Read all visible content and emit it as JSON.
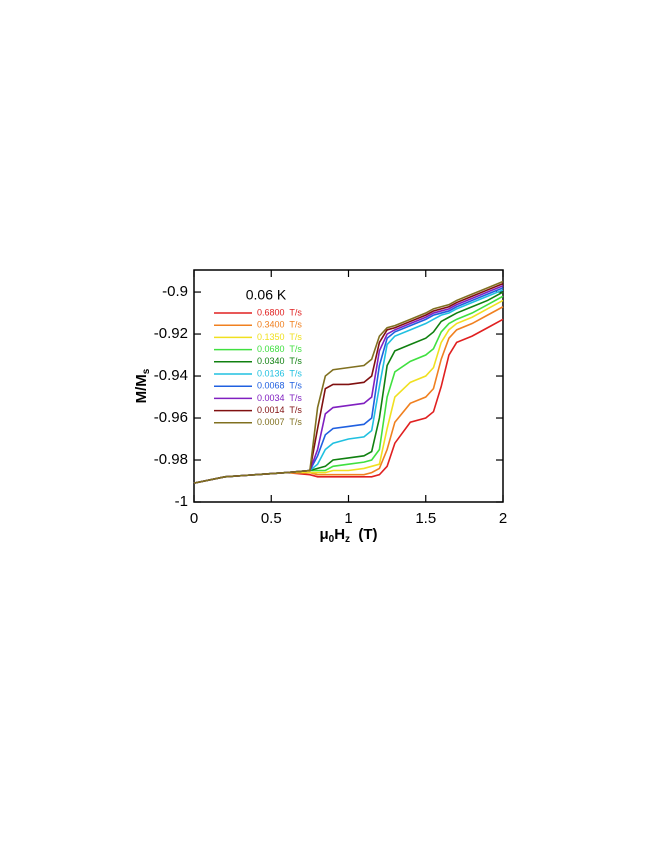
{
  "chart_data": {
    "type": "line",
    "title": "0.06  K",
    "xlabel": [
      {
        "text": "μ",
        "sub": false
      },
      {
        "text": "0",
        "sub": true
      },
      {
        "text": "H",
        "sub": false
      },
      {
        "text": "z",
        "sub": true
      },
      {
        "text": "  (T)",
        "sub": false
      }
    ],
    "ylabel": [
      {
        "text": "M/M",
        "sub": false
      },
      {
        "text": "s",
        "sub": true
      }
    ],
    "xlim": [
      0,
      2
    ],
    "ylim": [
      -1,
      -0.8895
    ],
    "xticks": [
      0,
      0.5,
      1,
      1.5,
      2
    ],
    "yticks": [
      -1,
      -0.98,
      -0.96,
      -0.94,
      -0.92,
      -0.9
    ],
    "x": [
      0,
      0.2,
      0.4,
      0.6,
      0.75,
      0.8,
      0.85,
      0.9,
      1.0,
      1.1,
      1.15,
      1.2,
      1.25,
      1.3,
      1.4,
      1.5,
      1.55,
      1.6,
      1.65,
      1.7,
      1.8,
      1.9,
      2.0
    ],
    "series": [
      {
        "name": "0.6800  T/s",
        "color": "#e02020",
        "values": [
          -0.991,
          -0.988,
          -0.987,
          -0.986,
          -0.987,
          -0.988,
          -0.988,
          -0.988,
          -0.988,
          -0.988,
          -0.988,
          -0.987,
          -0.983,
          -0.972,
          -0.962,
          -0.96,
          -0.957,
          -0.945,
          -0.93,
          -0.924,
          -0.921,
          -0.917,
          -0.913
        ]
      },
      {
        "name": "0.3400  T/s",
        "color": "#f08020",
        "values": [
          -0.991,
          -0.988,
          -0.987,
          -0.986,
          -0.986,
          -0.987,
          -0.987,
          -0.987,
          -0.987,
          -0.987,
          -0.986,
          -0.984,
          -0.975,
          -0.962,
          -0.953,
          -0.95,
          -0.946,
          -0.932,
          -0.922,
          -0.918,
          -0.915,
          -0.911,
          -0.907
        ]
      },
      {
        "name": "0.1350  T/s",
        "color": "#f0e020",
        "values": [
          -0.991,
          -0.988,
          -0.987,
          -0.986,
          -0.986,
          -0.986,
          -0.986,
          -0.985,
          -0.985,
          -0.984,
          -0.983,
          -0.982,
          -0.965,
          -0.95,
          -0.943,
          -0.94,
          -0.936,
          -0.924,
          -0.918,
          -0.915,
          -0.912,
          -0.908,
          -0.904
        ]
      },
      {
        "name": "0.0680  T/s",
        "color": "#40e040",
        "values": [
          -0.991,
          -0.988,
          -0.987,
          -0.986,
          -0.985,
          -0.985,
          -0.985,
          -0.983,
          -0.982,
          -0.981,
          -0.98,
          -0.975,
          -0.95,
          -0.938,
          -0.933,
          -0.93,
          -0.927,
          -0.919,
          -0.915,
          -0.913,
          -0.91,
          -0.906,
          -0.902
        ]
      },
      {
        "name": "0.0340  T/s",
        "color": "#108010",
        "values": [
          -0.991,
          -0.988,
          -0.987,
          -0.986,
          -0.985,
          -0.984,
          -0.983,
          -0.98,
          -0.979,
          -0.978,
          -0.976,
          -0.96,
          -0.935,
          -0.928,
          -0.925,
          -0.922,
          -0.919,
          -0.914,
          -0.912,
          -0.91,
          -0.907,
          -0.904,
          -0.9
        ]
      },
      {
        "name": "0.0136  T/s",
        "color": "#20c0e0",
        "values": [
          -0.991,
          -0.988,
          -0.987,
          -0.986,
          -0.985,
          -0.982,
          -0.975,
          -0.972,
          -0.97,
          -0.969,
          -0.966,
          -0.945,
          -0.925,
          -0.921,
          -0.918,
          -0.915,
          -0.913,
          -0.911,
          -0.91,
          -0.908,
          -0.905,
          -0.902,
          -0.899
        ]
      },
      {
        "name": "0.0068  T/s",
        "color": "#2060e0",
        "values": [
          -0.991,
          -0.988,
          -0.987,
          -0.986,
          -0.985,
          -0.978,
          -0.968,
          -0.965,
          -0.964,
          -0.963,
          -0.96,
          -0.935,
          -0.922,
          -0.919,
          -0.916,
          -0.913,
          -0.911,
          -0.91,
          -0.909,
          -0.907,
          -0.904,
          -0.901,
          -0.898
        ]
      },
      {
        "name": "0.0034  T/s",
        "color": "#8020c0",
        "values": [
          -0.991,
          -0.988,
          -0.987,
          -0.986,
          -0.985,
          -0.975,
          -0.958,
          -0.955,
          -0.954,
          -0.953,
          -0.95,
          -0.928,
          -0.92,
          -0.918,
          -0.915,
          -0.912,
          -0.91,
          -0.909,
          -0.908,
          -0.906,
          -0.903,
          -0.9,
          -0.897
        ]
      },
      {
        "name": "0.0014  T/s",
        "color": "#801010",
        "values": [
          -0.991,
          -0.988,
          -0.987,
          -0.986,
          -0.985,
          -0.965,
          -0.946,
          -0.944,
          -0.944,
          -0.943,
          -0.94,
          -0.924,
          -0.918,
          -0.917,
          -0.914,
          -0.911,
          -0.909,
          -0.908,
          -0.907,
          -0.905,
          -0.902,
          -0.899,
          -0.896
        ]
      },
      {
        "name": "0.0007  T/s",
        "color": "#807020",
        "values": [
          -0.991,
          -0.988,
          -0.987,
          -0.986,
          -0.985,
          -0.955,
          -0.94,
          -0.937,
          -0.936,
          -0.935,
          -0.932,
          -0.921,
          -0.917,
          -0.916,
          -0.913,
          -0.91,
          -0.908,
          -0.907,
          -0.906,
          -0.904,
          -0.901,
          -0.898,
          -0.895
        ]
      }
    ]
  }
}
